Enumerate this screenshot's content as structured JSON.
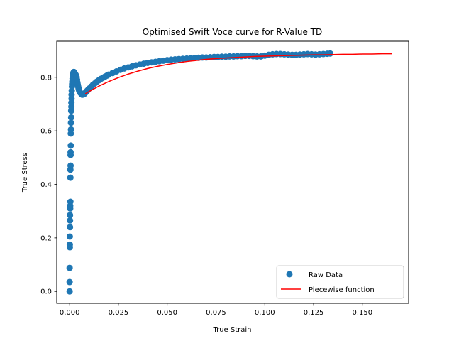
{
  "chart_data": {
    "type": "scatter",
    "title": "Optimised Swift Voce curve for R-Value TD",
    "xlabel": "True Strain",
    "ylabel": "True Stress",
    "xlim": [
      -0.0066,
      0.1737
    ],
    "ylim": [
      -0.0445,
      0.9348
    ],
    "xticks": [
      0.0,
      0.025,
      0.05,
      0.075,
      0.1,
      0.125,
      0.15
    ],
    "xtick_labels": [
      "0.000",
      "0.025",
      "0.050",
      "0.075",
      "0.100",
      "0.125",
      "0.150"
    ],
    "yticks": [
      0.0,
      0.2,
      0.4,
      0.6,
      0.8
    ],
    "ytick_labels": [
      "0.0",
      "0.2",
      "0.4",
      "0.6",
      "0.8"
    ],
    "grid": false,
    "legend_position": "lower-right",
    "legend": [
      "Raw Data",
      "Piecewise function"
    ],
    "colors": {
      "raw_data": "#1f77b4",
      "piecewise": "#ff0000"
    },
    "series": [
      {
        "name": "Raw Data",
        "kind": "scatter",
        "x": [
          0.0,
          0.0,
          0.0,
          0.0001,
          0.0001,
          0.0001,
          0.0002,
          0.0002,
          0.0002,
          0.0003,
          0.0003,
          0.0004,
          0.0004,
          0.0004,
          0.0005,
          0.0005,
          0.0005,
          0.0006,
          0.0006,
          0.0007,
          0.0007,
          0.0008,
          0.0008,
          0.0009,
          0.0009,
          0.001,
          0.001,
          0.0011,
          0.0012,
          0.0013,
          0.0014,
          0.0015,
          0.0016,
          0.0018,
          0.002,
          0.0022,
          0.0024,
          0.0026,
          0.0028,
          0.003,
          0.0032,
          0.0034,
          0.0036,
          0.0038,
          0.004,
          0.0042,
          0.0044,
          0.0046,
          0.0048,
          0.005,
          0.0055,
          0.006,
          0.0065,
          0.007,
          0.0075,
          0.008,
          0.0085,
          0.009,
          0.0095,
          0.01,
          0.011,
          0.012,
          0.013,
          0.014,
          0.015,
          0.016,
          0.017,
          0.018,
          0.019,
          0.02,
          0.022,
          0.024,
          0.026,
          0.028,
          0.03,
          0.032,
          0.034,
          0.036,
          0.038,
          0.04,
          0.042,
          0.044,
          0.046,
          0.048,
          0.05,
          0.052,
          0.054,
          0.056,
          0.058,
          0.06,
          0.062,
          0.064,
          0.066,
          0.068,
          0.07,
          0.072,
          0.074,
          0.076,
          0.078,
          0.08,
          0.082,
          0.084,
          0.086,
          0.088,
          0.09,
          0.092,
          0.094,
          0.096,
          0.098,
          0.1,
          0.102,
          0.104,
          0.106,
          0.108,
          0.11,
          0.112,
          0.114,
          0.116,
          0.118,
          0.12,
          0.122,
          0.124,
          0.126,
          0.128,
          0.13,
          0.132,
          0.1335
        ],
        "y": [
          0.0,
          0.035,
          0.088,
          0.165,
          0.175,
          0.205,
          0.24,
          0.265,
          0.285,
          0.31,
          0.32,
          0.335,
          0.425,
          0.455,
          0.47,
          0.51,
          0.52,
          0.545,
          0.59,
          0.605,
          0.63,
          0.65,
          0.675,
          0.69,
          0.705,
          0.72,
          0.735,
          0.75,
          0.765,
          0.775,
          0.785,
          0.795,
          0.805,
          0.812,
          0.818,
          0.82,
          0.818,
          0.815,
          0.812,
          0.81,
          0.808,
          0.805,
          0.8,
          0.79,
          0.78,
          0.772,
          0.765,
          0.758,
          0.752,
          0.748,
          0.742,
          0.738,
          0.735,
          0.736,
          0.738,
          0.742,
          0.746,
          0.75,
          0.754,
          0.758,
          0.765,
          0.772,
          0.778,
          0.784,
          0.789,
          0.794,
          0.798,
          0.802,
          0.806,
          0.81,
          0.816,
          0.822,
          0.828,
          0.833,
          0.837,
          0.841,
          0.845,
          0.848,
          0.851,
          0.854,
          0.856,
          0.858,
          0.86,
          0.862,
          0.864,
          0.866,
          0.867,
          0.868,
          0.869,
          0.87,
          0.871,
          0.872,
          0.873,
          0.874,
          0.874,
          0.875,
          0.876,
          0.876,
          0.877,
          0.877,
          0.878,
          0.878,
          0.879,
          0.879,
          0.88,
          0.88,
          0.879,
          0.878,
          0.878,
          0.881,
          0.884,
          0.886,
          0.887,
          0.887,
          0.886,
          0.885,
          0.884,
          0.884,
          0.885,
          0.886,
          0.887,
          0.886,
          0.885,
          0.886,
          0.887,
          0.888,
          0.889
        ]
      },
      {
        "name": "Piecewise function",
        "kind": "line",
        "x": [
          0.008,
          0.01,
          0.015,
          0.02,
          0.025,
          0.03,
          0.035,
          0.04,
          0.045,
          0.05,
          0.055,
          0.06,
          0.065,
          0.07,
          0.075,
          0.08,
          0.085,
          0.09,
          0.095,
          0.1,
          0.105,
          0.11,
          0.115,
          0.12,
          0.125,
          0.13,
          0.135,
          0.14,
          0.145,
          0.15,
          0.155,
          0.16,
          0.165
        ],
        "y": [
          0.738,
          0.747,
          0.767,
          0.784,
          0.799,
          0.812,
          0.823,
          0.833,
          0.841,
          0.848,
          0.854,
          0.859,
          0.863,
          0.867,
          0.87,
          0.872,
          0.874,
          0.876,
          0.878,
          0.879,
          0.88,
          0.881,
          0.882,
          0.883,
          0.884,
          0.884,
          0.885,
          0.886,
          0.886,
          0.887,
          0.887,
          0.888,
          0.888
        ]
      }
    ]
  }
}
